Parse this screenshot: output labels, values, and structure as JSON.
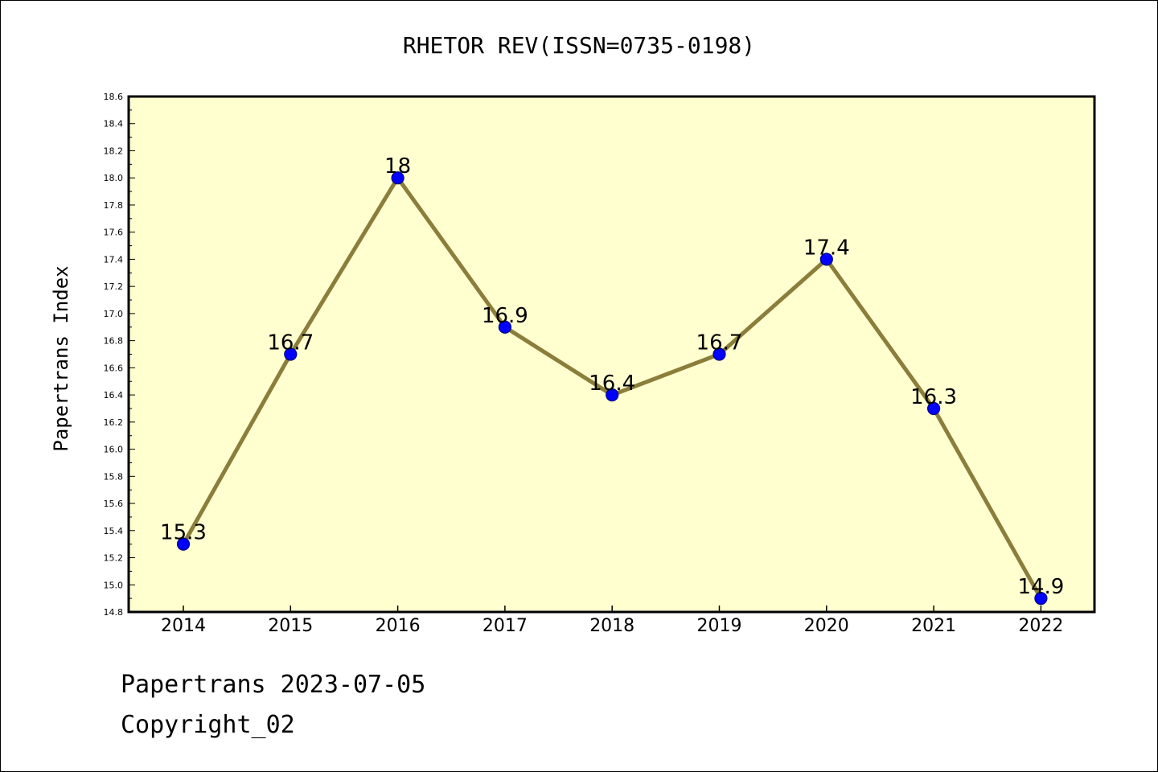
{
  "chart_data": {
    "type": "line",
    "title": "RHETOR REV(ISSN=0735-0198)",
    "xlabel": "",
    "ylabel": "Papertrans Index",
    "categories": [
      "2014",
      "2015",
      "2016",
      "2017",
      "2018",
      "2019",
      "2020",
      "2021",
      "2022"
    ],
    "series": [
      {
        "values": [
          15.3,
          16.7,
          18.0,
          16.9,
          16.4,
          16.7,
          17.4,
          16.3,
          14.9
        ],
        "data_labels": [
          "15.3",
          "16.7",
          "18",
          "16.9",
          "16.4",
          "16.7",
          "17.4",
          "16.3",
          "14.9"
        ]
      }
    ],
    "ylim": [
      14.8,
      18.6
    ],
    "y_ticks": [
      "14.8",
      "15.0",
      "15.2",
      "15.4",
      "15.6",
      "15.8",
      "16.0",
      "16.2",
      "16.4",
      "16.6",
      "16.8",
      "17.0",
      "17.2",
      "17.4",
      "17.6",
      "17.8",
      "18.0",
      "18.2",
      "18.4",
      "18.6"
    ],
    "grid": false,
    "legend": "none",
    "colors": {
      "plot_background": "#FFFFD0",
      "line": "#8B7D3A",
      "marker_fill": "#0000FF",
      "marker_edge": "#000080",
      "axis": "#000000"
    }
  },
  "footer": {
    "line1": "Papertrans 2023-07-05",
    "line2": "Copyright_02"
  }
}
